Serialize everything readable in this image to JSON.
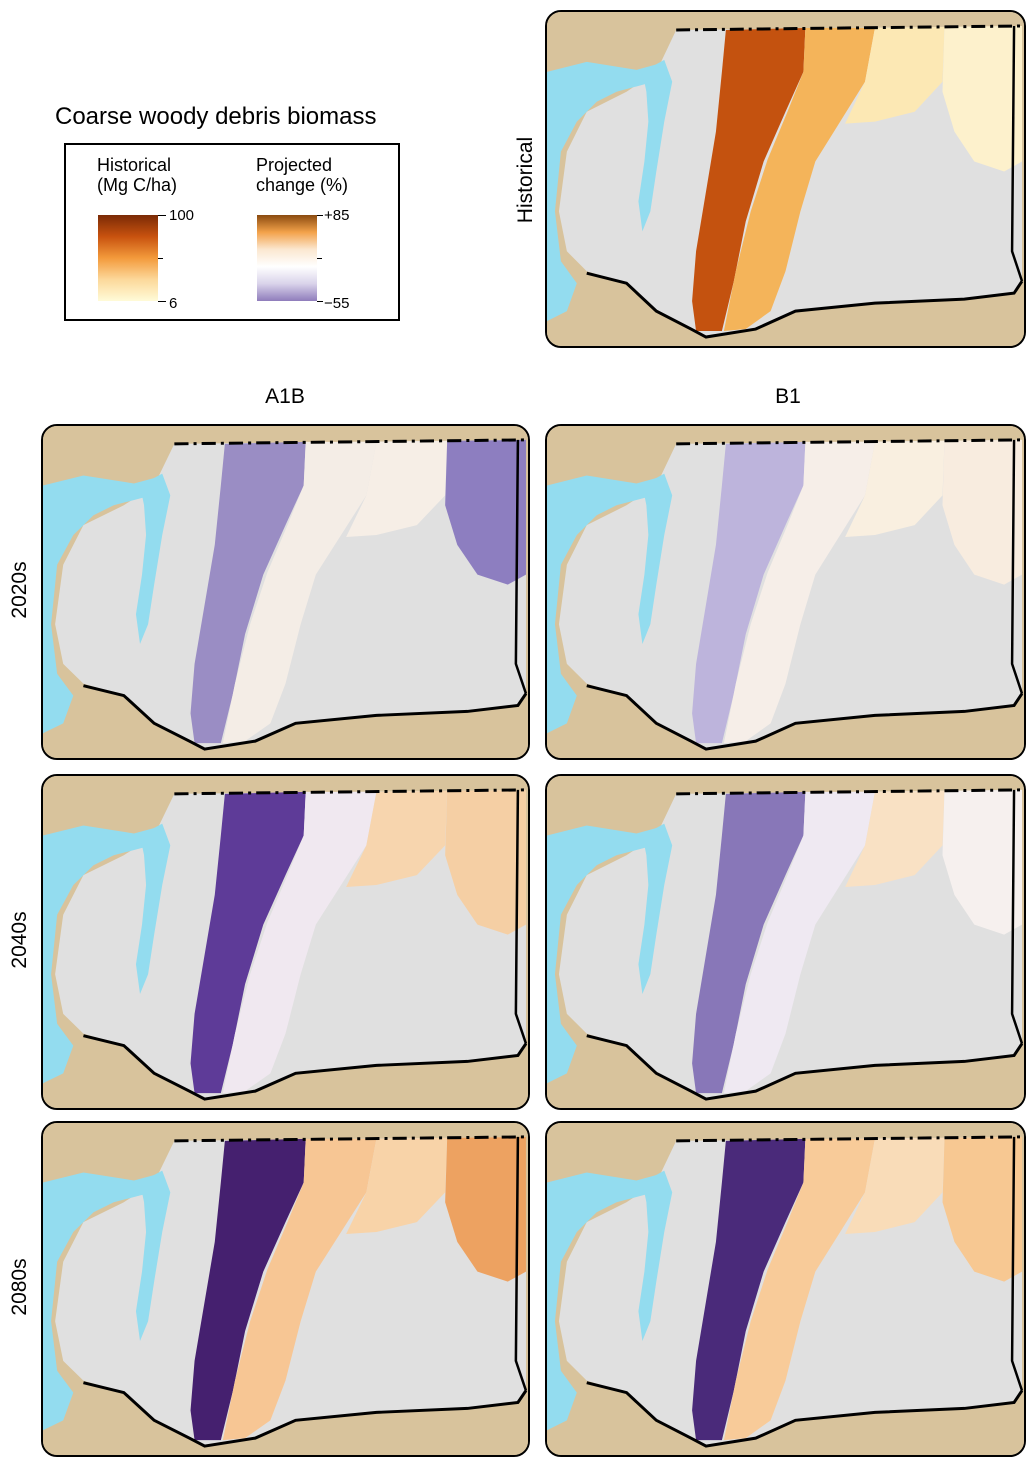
{
  "legend": {
    "title": "Coarse woody debris biomass",
    "historical": {
      "heading_line1": "Historical",
      "heading_line2": "(Mg C/ha)",
      "max_label": "100",
      "min_label": "6",
      "colors": [
        "#7a2a06",
        "#c8520f",
        "#f39a3b",
        "#fcd89a",
        "#fffbd8"
      ]
    },
    "change": {
      "heading_line1": "Projected",
      "heading_line2": "change (%)",
      "max_label": "+85",
      "min_label": "−55",
      "colors": [
        "#8a4a10",
        "#f3a24a",
        "#fbe7d0",
        "#ffffff",
        "#d9d3ea",
        "#8f7dbb"
      ]
    }
  },
  "historical_panel": {
    "label": "Historical"
  },
  "scenarios": [
    {
      "label": "A1B"
    },
    {
      "label": "B1"
    }
  ],
  "periods": [
    {
      "label": "2020s"
    },
    {
      "label": "2040s"
    },
    {
      "label": "2080s"
    }
  ],
  "map_colors": {
    "land": "#d8c39c",
    "state": "#e0e0e0",
    "water": "#93dcef",
    "border": "#000000"
  },
  "panel_styles": {
    "historical": {
      "west": "#c4520f",
      "central": "#f4b45a",
      "east": "#fce8b4",
      "northeast": "#fdf1cc"
    },
    "A1B_2020s": {
      "west": "#9a8dc4",
      "central": "#f4ede6",
      "east": "#f6eee6",
      "northeast": "#8d7ec0"
    },
    "B1_2020s": {
      "west": "#bdb4dc",
      "central": "#f6eee8",
      "east": "#f9efe0",
      "northeast": "#f8ecdf"
    },
    "A1B_2040s": {
      "west": "#5e3b98",
      "central": "#f0e8f0",
      "east": "#f7d5ae",
      "northeast": "#f5cfa4"
    },
    "B1_2040s": {
      "west": "#8877b8",
      "central": "#efe9f2",
      "east": "#f9e1c4",
      "northeast": "#f6f0ee"
    },
    "A1B_2080s": {
      "west": "#45206f",
      "central": "#f7c694",
      "east": "#f8d3a8",
      "northeast": "#eda261"
    },
    "B1_2080s": {
      "west": "#4a2a7a",
      "central": "#f8cb99",
      "east": "#f9dcb8",
      "northeast": "#f7c892"
    }
  }
}
